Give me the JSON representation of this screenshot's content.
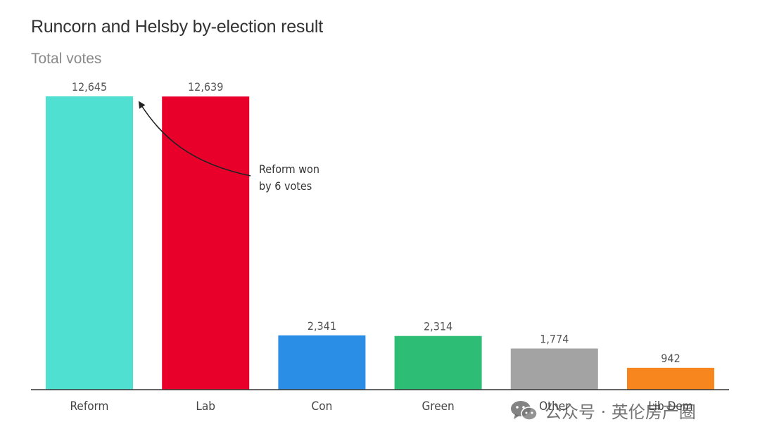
{
  "title": "Runcorn and Helsby by-election result",
  "subtitle": "Total votes",
  "chart_data": {
    "type": "bar",
    "categories": [
      "Reform",
      "Lab",
      "Con",
      "Green",
      "Other",
      "Lib Dem"
    ],
    "values": [
      12645,
      12639,
      2341,
      2314,
      1774,
      942
    ],
    "value_labels": [
      "12,645",
      "12,639",
      "2,341",
      "2,314",
      "1,774",
      "942"
    ],
    "colors": [
      "#4fe0d2",
      "#e8002b",
      "#2b8ee6",
      "#2ebd74",
      "#a3a3a3",
      "#f7861e"
    ],
    "ylim": [
      0,
      12645
    ],
    "grid": false,
    "annotation": {
      "lines": [
        "Reform won",
        "by 6 votes"
      ],
      "points_to": "Reform"
    }
  },
  "watermark": {
    "text": "公众号 · 英伦房产圈",
    "icon": "wechat-icon"
  }
}
